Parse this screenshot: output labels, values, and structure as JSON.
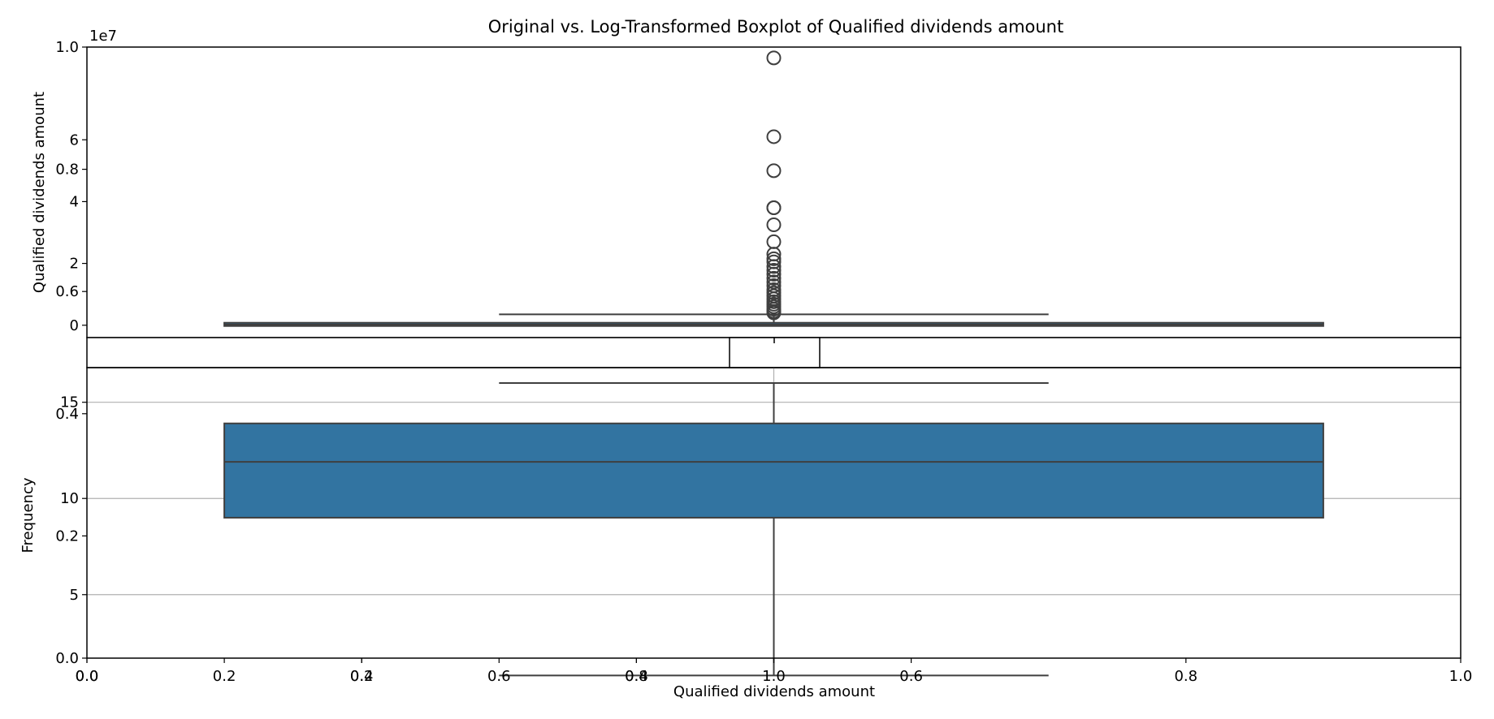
{
  "chart_data": {
    "type": "box",
    "title": "Original vs. Log-Transformed Boxplot of Qualified dividends amount",
    "outer_axes": {
      "xlabel": "Qualified dividends amount",
      "ylabel": "Frequency",
      "xlim": [
        0.0,
        1.0
      ],
      "ylim": [
        0.0,
        1.0
      ],
      "xticks": [
        0.0,
        0.2,
        0.4,
        0.6,
        0.8,
        1.0
      ],
      "yticks": [
        0.0,
        0.2,
        0.4,
        0.6,
        0.8,
        1.0
      ],
      "xtick_labels": [
        "0.0",
        "0.2",
        "0.4",
        "0.6",
        "0.8",
        "1.0"
      ],
      "ytick_labels": [
        "0.0",
        "0.2",
        "0.4",
        "0.6",
        "0.8",
        "1.0"
      ]
    },
    "left_inset_axes": {
      "xticks": [
        0.0,
        0.2,
        0.4,
        0.6,
        0.8,
        1.0
      ],
      "xtick_labels": [
        "0.0",
        "0.2",
        "0.4",
        "0.6",
        "0.8",
        "1.0"
      ]
    },
    "top_panel": {
      "ylabel": "Qualified dividends amount",
      "scale_label": "1e7",
      "yticks": [
        0,
        2,
        4,
        6
      ],
      "ytick_labels": [
        "0",
        "2",
        "4",
        "6"
      ],
      "ylim": [
        -0.4,
        9.0
      ],
      "box": {
        "q1": 0.0,
        "median": 0.02,
        "q3": 0.08,
        "whisker_low": 0.0,
        "whisker_high": 0.35
      },
      "outliers": [
        8.65,
        6.1,
        5.0,
        3.8,
        3.8,
        3.25,
        2.7,
        2.3,
        2.15,
        2.05,
        1.9,
        1.78,
        1.65,
        1.52,
        1.4,
        1.28,
        1.15,
        1.05,
        0.95,
        0.85,
        0.76,
        0.68,
        0.6,
        0.52,
        0.45,
        0.4
      ]
    },
    "bottom_panel": {
      "grid": true,
      "yticks": [
        5,
        10,
        15
      ],
      "ytick_labels": [
        "5",
        "10",
        "15"
      ],
      "ylim": [
        1.7,
        16.8
      ],
      "box": {
        "q1": 9.0,
        "median": 11.9,
        "q3": 13.9,
        "whisker_low": 0.8,
        "whisker_high": 16.0
      }
    },
    "colors": {
      "box_fill": "#3274a1",
      "box_edge": "#3f3f3f",
      "grid": "#b0b0b0"
    }
  }
}
